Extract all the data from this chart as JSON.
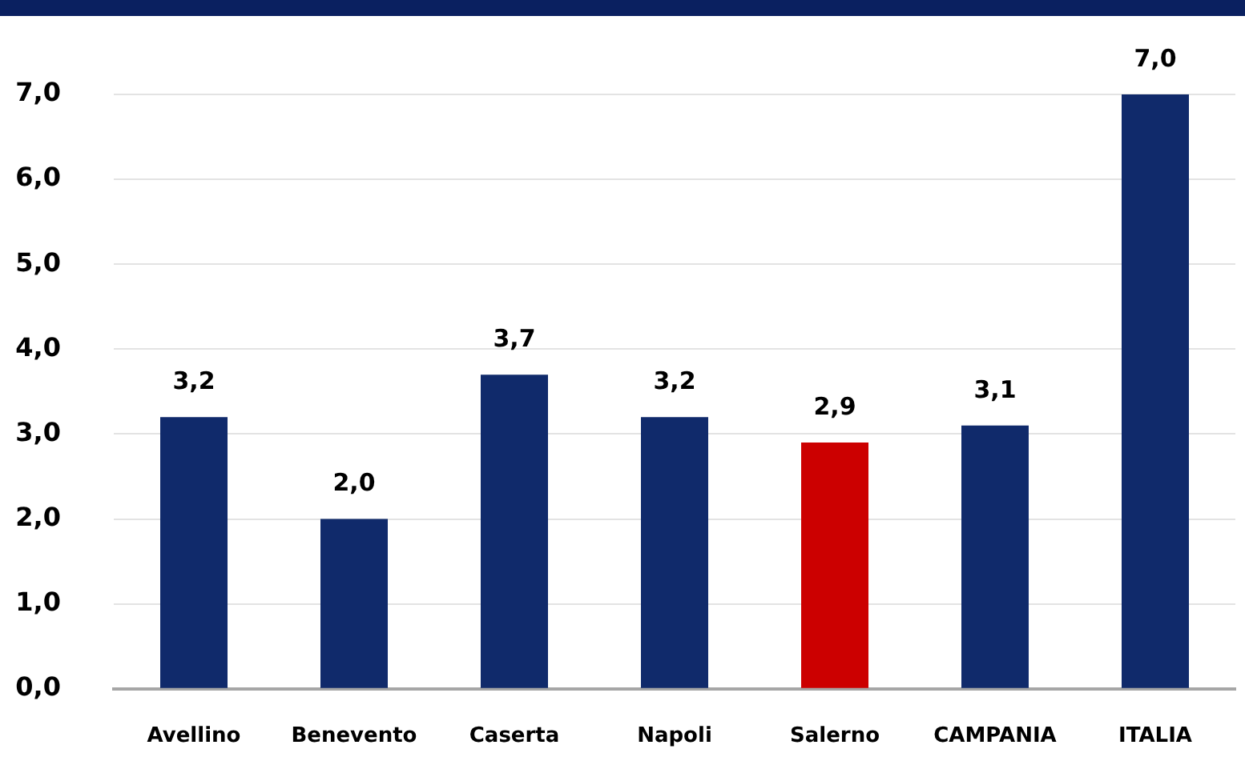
{
  "chart_data": {
    "type": "bar",
    "categories": [
      "Avellino",
      "Benevento",
      "Caserta",
      "Napoli",
      "Salerno",
      "CAMPANIA",
      "ITALIA"
    ],
    "values": [
      3.2,
      2.0,
      3.7,
      3.2,
      2.9,
      3.1,
      7.0
    ],
    "colors": [
      "#102a6b",
      "#102a6b",
      "#102a6b",
      "#102a6b",
      "#cc0000",
      "#102a6b",
      "#102a6b"
    ],
    "value_labels": [
      "3,2",
      "2,0",
      "3,7",
      "3,2",
      "2,9",
      "3,1",
      "7,0"
    ],
    "ylim": [
      0,
      7
    ],
    "yticks": [
      {
        "value": 0,
        "label": "0,0"
      },
      {
        "value": 1,
        "label": "1,0"
      },
      {
        "value": 2,
        "label": "2,0"
      },
      {
        "value": 3,
        "label": "3,0"
      },
      {
        "value": 4,
        "label": "4,0"
      },
      {
        "value": 5,
        "label": "5,0"
      },
      {
        "value": 6,
        "label": "6,0"
      },
      {
        "value": 7,
        "label": "7,0"
      }
    ],
    "grid": "y",
    "legend": false
  }
}
